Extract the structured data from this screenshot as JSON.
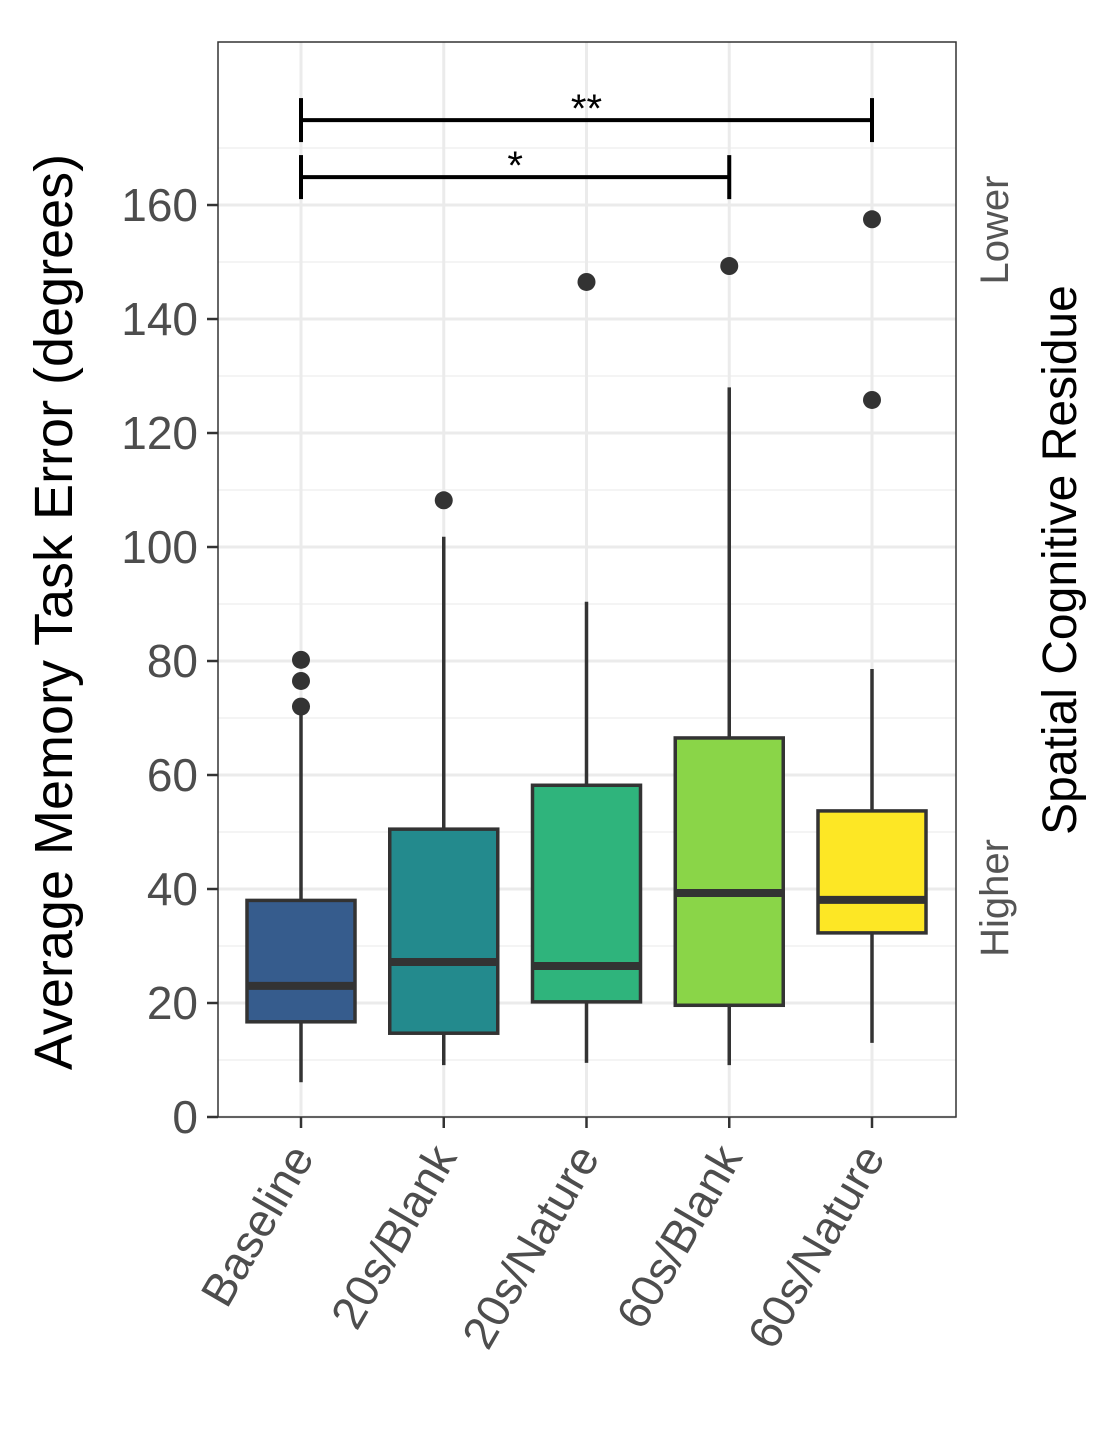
{
  "chart_data": {
    "type": "boxplot",
    "title": "",
    "xlabel": "",
    "ylabel": "Average Memory Task Error (degrees)",
    "secondary_label": "Spatial Cognitive Residue",
    "secondary_label_top": "Lower",
    "secondary_label_bottom": "Higher",
    "ylim": [
      0,
      188.6
    ],
    "yticks": [
      0,
      20,
      40,
      60,
      80,
      100,
      120,
      140,
      160
    ],
    "grid": true,
    "categories": [
      "Baseline",
      "20s/Blank",
      "20s/Nature",
      "60s/Blank",
      "60s/Nature"
    ],
    "colors": [
      "#365C8D",
      "#238A8D",
      "#2FB47C",
      "#8AD548",
      "#FDE725"
    ],
    "boxes": [
      {
        "whisker_low": 6.1,
        "q1": 16.7,
        "median": 23.0,
        "q3": 38.0,
        "whisker_high": 71.4,
        "outliers": [
          72.0,
          76.5,
          80.2
        ]
      },
      {
        "whisker_low": 9.1,
        "q1": 14.7,
        "median": 27.2,
        "q3": 50.5,
        "whisker_high": 101.8,
        "outliers": [
          108.2
        ]
      },
      {
        "whisker_low": 9.5,
        "q1": 20.2,
        "median": 26.5,
        "q3": 58.2,
        "whisker_high": 90.4,
        "outliers": [
          146.5
        ]
      },
      {
        "whisker_low": 9.1,
        "q1": 19.6,
        "median": 39.3,
        "q3": 66.5,
        "whisker_high": 128.0,
        "outliers": [
          149.3
        ]
      },
      {
        "whisker_low": 13.0,
        "q1": 32.3,
        "median": 38.1,
        "q3": 53.7,
        "whisker_high": 78.6,
        "outliers": [
          125.8,
          157.5
        ]
      }
    ],
    "significance": [
      {
        "from": "Baseline",
        "to": "60s/Blank",
        "y": 164.9,
        "label": "*"
      },
      {
        "from": "Baseline",
        "to": "60s/Nature",
        "y": 174.9,
        "label": "**"
      }
    ]
  }
}
